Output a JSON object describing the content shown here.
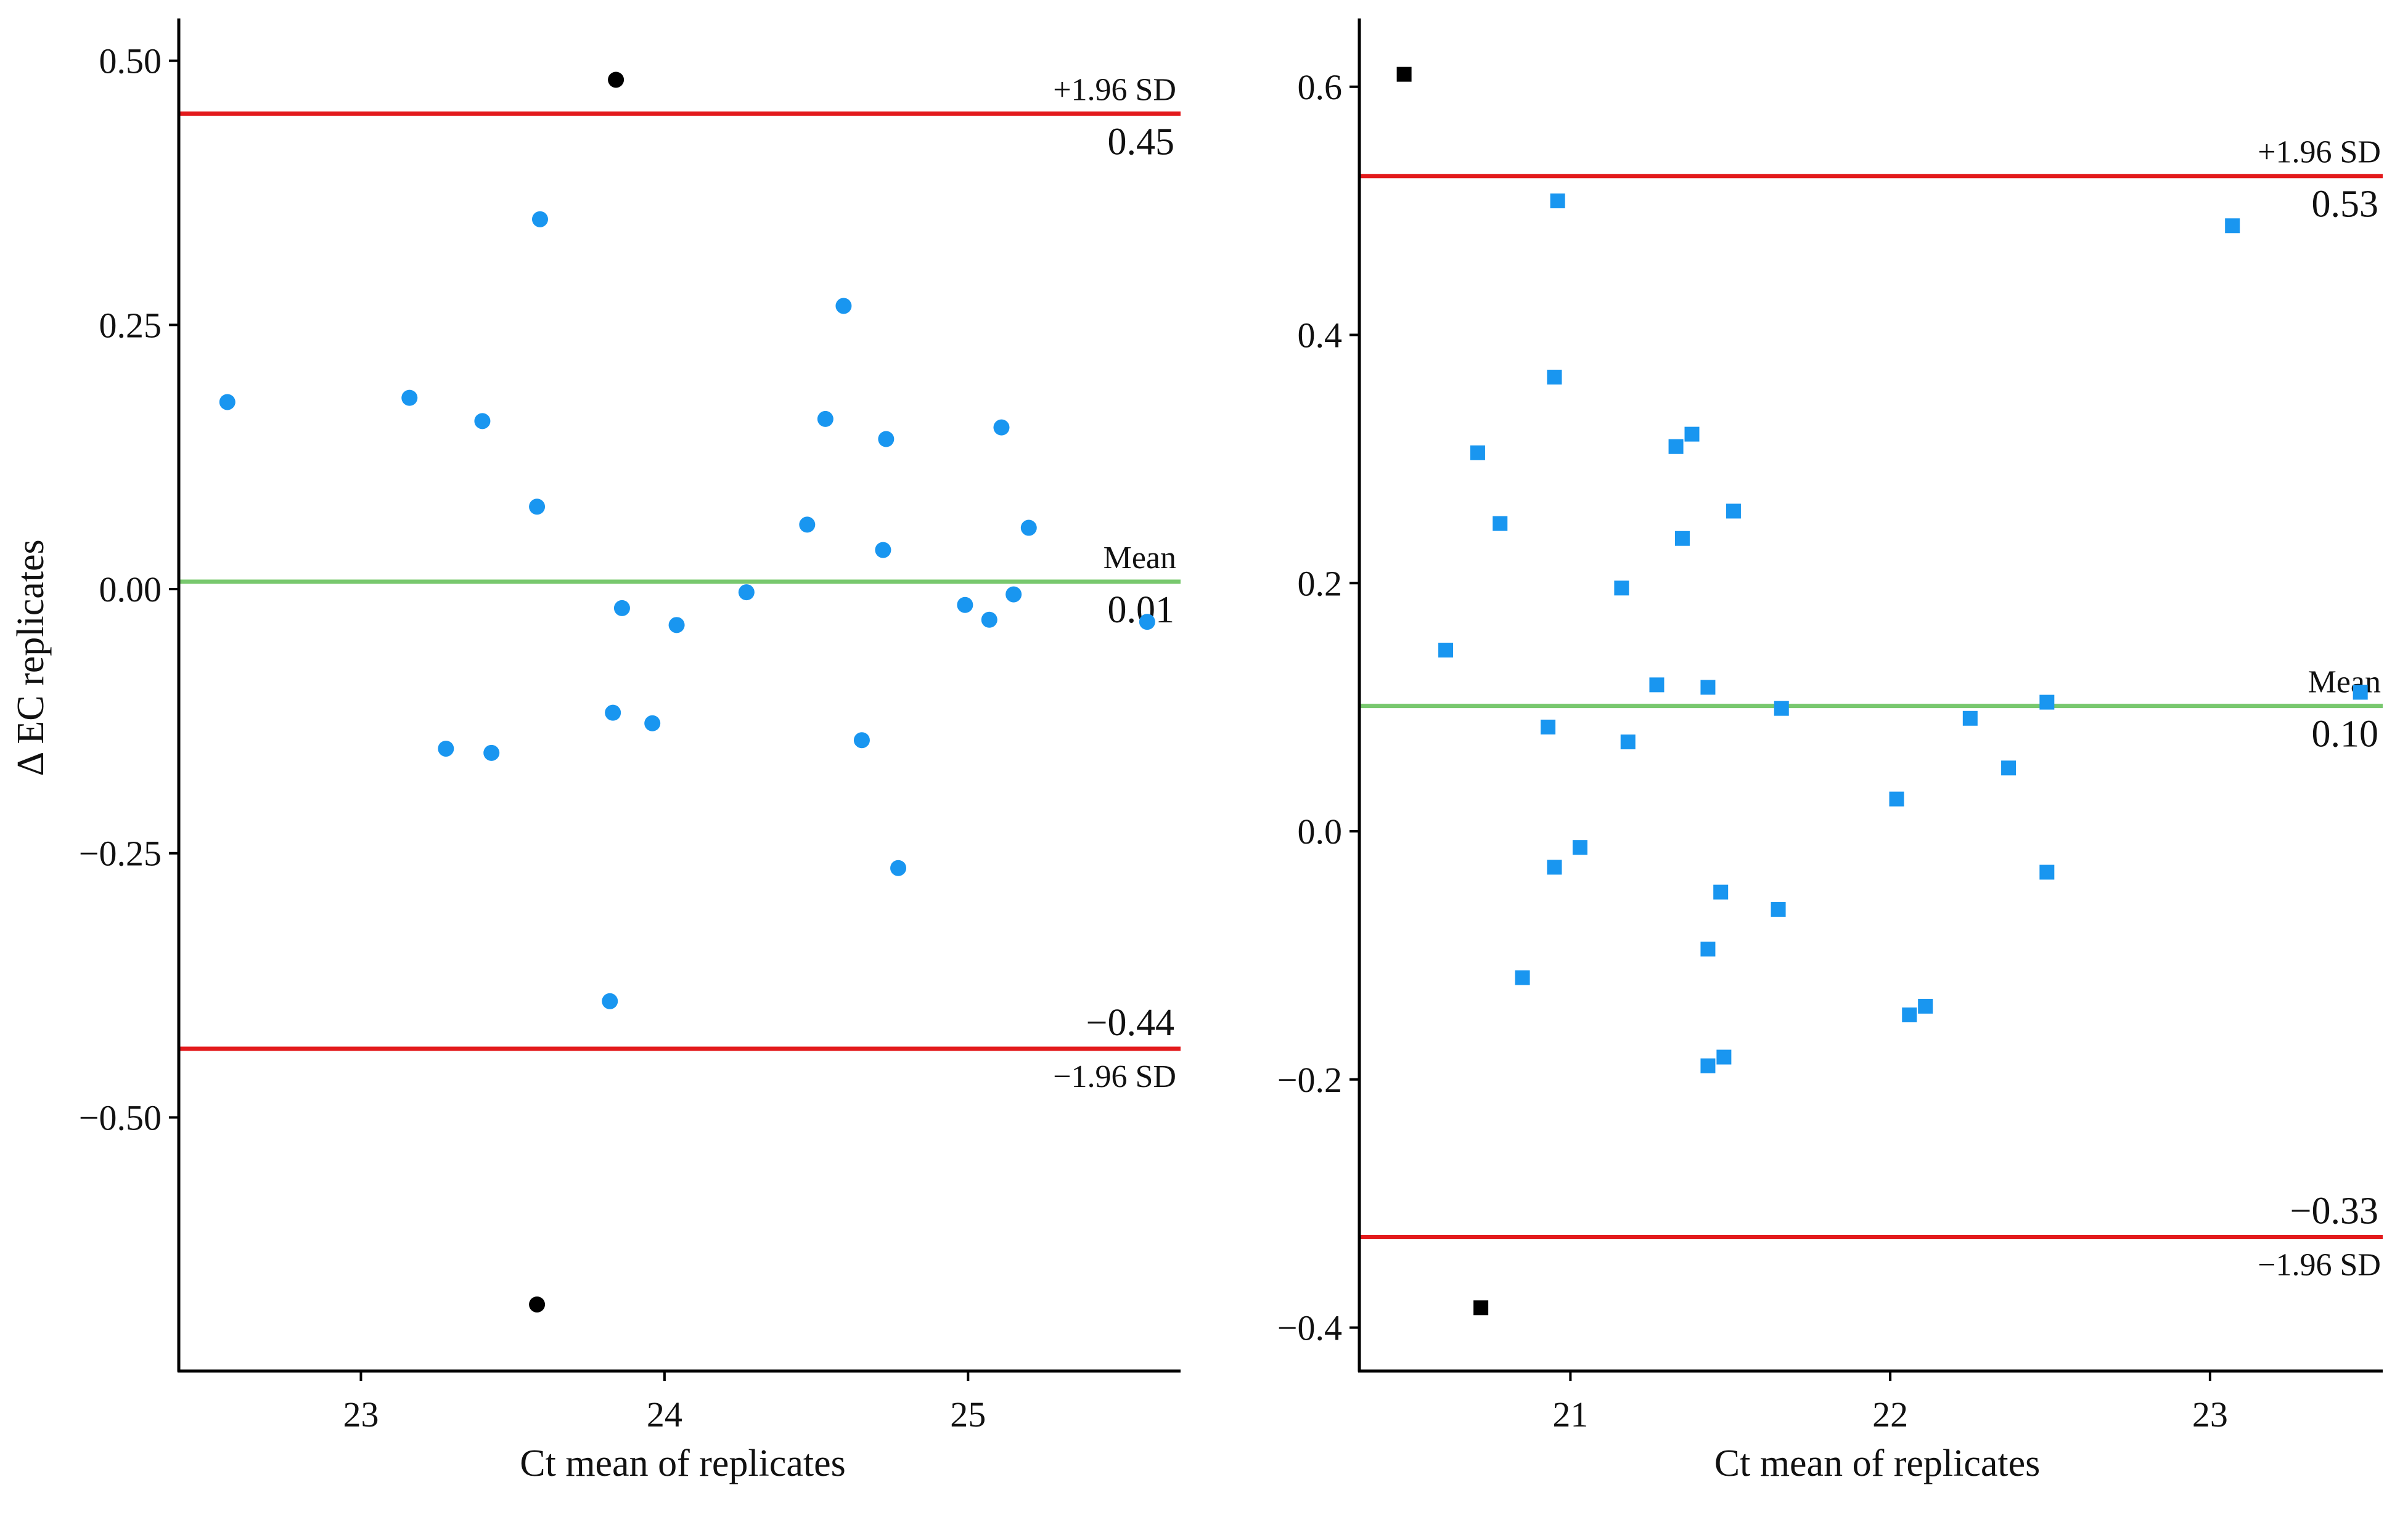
{
  "chart_data": [
    {
      "type": "scatter",
      "marker": "circle",
      "xlabel": "Ct mean of replicates",
      "ylabel": "Δ EC replicates",
      "xlim": [
        22.4,
        25.7
      ],
      "ylim": [
        -0.74,
        0.54
      ],
      "xticks": [
        23,
        24,
        25
      ],
      "xtick_labels": [
        "23",
        "24",
        "25"
      ],
      "yticks": [
        0.5,
        0.25,
        0.0,
        -0.25,
        -0.5
      ],
      "ytick_labels": [
        "0.50",
        "0.25",
        "0.00",
        "−0.25",
        "−0.50"
      ],
      "grid": false,
      "reference_lines": [
        {
          "name": "upper-limit",
          "value": 0.45,
          "color": "#e31a1c",
          "label": "+1.96 SD",
          "value_label": "0.45"
        },
        {
          "name": "mean",
          "value": 0.007,
          "color": "#78c86e",
          "label": "Mean",
          "value_label": "0.01"
        },
        {
          "name": "lower-limit",
          "value": -0.435,
          "color": "#e31a1c",
          "label": "−1.96 SD",
          "value_label": "−0.44"
        }
      ],
      "series": [
        {
          "name": "within-limits",
          "color": "#1996f0",
          "points": [
            [
              22.56,
              0.177
            ],
            [
              23.16,
              0.181
            ],
            [
              23.4,
              0.159
            ],
            [
              23.59,
              0.35
            ],
            [
              23.58,
              0.078
            ],
            [
              23.86,
              -0.018
            ],
            [
              23.28,
              -0.151
            ],
            [
              23.43,
              -0.155
            ],
            [
              23.83,
              -0.117
            ],
            [
              23.96,
              -0.127
            ],
            [
              24.04,
              -0.034
            ],
            [
              24.27,
              -0.003
            ],
            [
              23.82,
              -0.39
            ],
            [
              24.47,
              0.061
            ],
            [
              24.53,
              0.161
            ],
            [
              24.59,
              0.268
            ],
            [
              24.72,
              0.037
            ],
            [
              24.73,
              0.142
            ],
            [
              24.65,
              -0.143
            ],
            [
              24.77,
              -0.264
            ],
            [
              24.99,
              -0.015
            ],
            [
              25.07,
              -0.029
            ],
            [
              25.11,
              0.153
            ],
            [
              25.15,
              -0.005
            ],
            [
              25.2,
              0.058
            ],
            [
              25.59,
              -0.031
            ]
          ]
        },
        {
          "name": "outside-limits",
          "color": "#000000",
          "points": [
            [
              23.84,
              0.482
            ],
            [
              23.58,
              -0.677
            ]
          ]
        }
      ]
    },
    {
      "type": "scatter",
      "marker": "square",
      "xlabel": "Ct mean of replicates",
      "ylabel": "",
      "xlim": [
        20.34,
        23.54
      ],
      "ylim": [
        -0.435,
        0.655
      ],
      "xticks": [
        21,
        22,
        23
      ],
      "xtick_labels": [
        "21",
        "22",
        "23"
      ],
      "yticks": [
        0.6,
        0.4,
        0.2,
        0.0,
        -0.2,
        -0.4
      ],
      "ytick_labels": [
        "0.6",
        "0.4",
        "0.2",
        "0.0",
        "−0.2",
        "−0.4"
      ],
      "grid": false,
      "reference_lines": [
        {
          "name": "upper-limit",
          "value": 0.528,
          "color": "#e31a1c",
          "label": "+1.96 SD",
          "value_label": "0.53"
        },
        {
          "name": "mean",
          "value": 0.101,
          "color": "#78c86e",
          "label": "Mean",
          "value_label": "0.10"
        },
        {
          "name": "lower-limit",
          "value": -0.327,
          "color": "#e31a1c",
          "label": "−1.96 SD",
          "value_label": "−0.33"
        }
      ],
      "series": [
        {
          "name": "within-limits",
          "color": "#1996f0",
          "points": [
            [
              20.61,
              0.146
            ],
            [
              20.71,
              0.305
            ],
            [
              20.78,
              0.248
            ],
            [
              20.85,
              -0.118
            ],
            [
              20.93,
              0.084
            ],
            [
              20.95,
              0.366
            ],
            [
              20.96,
              0.508
            ],
            [
              20.95,
              -0.029
            ],
            [
              21.03,
              -0.013
            ],
            [
              21.16,
              0.196
            ],
            [
              21.18,
              0.072
            ],
            [
              21.27,
              0.118
            ],
            [
              21.33,
              0.31
            ],
            [
              21.35,
              0.236
            ],
            [
              21.38,
              0.32
            ],
            [
              21.43,
              0.116
            ],
            [
              21.43,
              -0.095
            ],
            [
              21.43,
              -0.189
            ],
            [
              21.47,
              -0.049
            ],
            [
              21.48,
              -0.182
            ],
            [
              21.51,
              0.258
            ],
            [
              21.66,
              0.099
            ],
            [
              21.65,
              -0.063
            ],
            [
              22.02,
              0.026
            ],
            [
              22.06,
              -0.148
            ],
            [
              22.11,
              -0.141
            ],
            [
              22.25,
              0.091
            ],
            [
              22.37,
              0.051
            ],
            [
              22.49,
              0.104
            ],
            [
              22.49,
              -0.033
            ],
            [
              23.07,
              0.488
            ],
            [
              23.47,
              0.112
            ]
          ]
        },
        {
          "name": "outside-limits",
          "color": "#000000",
          "points": [
            [
              20.48,
              0.61
            ],
            [
              20.72,
              -0.384
            ]
          ]
        }
      ]
    }
  ]
}
